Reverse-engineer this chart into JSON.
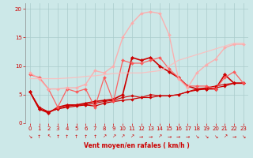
{
  "background_color": "#cce8e8",
  "grid_color": "#aacccc",
  "xlabel": "Vent moyen/en rafales ( km/h )",
  "xlabel_color": "#cc0000",
  "tick_color": "#cc0000",
  "ylim": [
    0,
    21
  ],
  "xlim": [
    -0.5,
    23.5
  ],
  "yticks": [
    0,
    5,
    10,
    15,
    20
  ],
  "xticks": [
    0,
    1,
    2,
    3,
    4,
    5,
    6,
    7,
    8,
    9,
    10,
    11,
    12,
    13,
    14,
    15,
    16,
    17,
    18,
    19,
    20,
    21,
    22,
    23
  ],
  "wind_arrows": [
    "↘",
    "↑",
    "↖",
    "↑",
    "↑",
    "↑",
    "↑",
    "↑",
    "↗",
    "↗",
    "↗",
    "↗",
    "→",
    "→",
    "↗",
    "→",
    "→",
    "→",
    "↘",
    "↘",
    "↘",
    "↗",
    "→",
    "↘"
  ],
  "lines": [
    {
      "x": [
        0,
        1,
        2,
        3,
        4,
        5,
        6,
        7,
        8,
        9,
        10,
        11,
        12,
        13,
        14,
        15,
        16,
        17,
        18,
        19,
        20,
        21,
        22,
        23
      ],
      "y": [
        5.5,
        2.5,
        2.0,
        2.5,
        2.8,
        3.0,
        3.2,
        3.0,
        3.5,
        3.8,
        4.0,
        4.2,
        4.5,
        4.5,
        4.8,
        4.8,
        5.0,
        5.5,
        5.8,
        6.0,
        6.2,
        6.5,
        7.0,
        7.0
      ],
      "color": "#cc0000",
      "lw": 0.9,
      "marker": "D",
      "markersize": 1.8,
      "alpha": 1.0
    },
    {
      "x": [
        0,
        1,
        2,
        3,
        4,
        5,
        6,
        7,
        8,
        9,
        10,
        11,
        12,
        13,
        14,
        15,
        16,
        17,
        18,
        19,
        20,
        21,
        22,
        23
      ],
      "y": [
        5.5,
        2.8,
        2.0,
        2.5,
        3.0,
        3.2,
        3.2,
        3.5,
        3.8,
        4.0,
        4.5,
        4.8,
        4.5,
        5.0,
        4.8,
        4.8,
        5.0,
        5.5,
        6.0,
        6.2,
        6.5,
        6.8,
        7.0,
        7.0
      ],
      "color": "#cc0000",
      "lw": 0.8,
      "marker": "D",
      "markersize": 1.8,
      "alpha": 1.0
    },
    {
      "x": [
        0,
        1,
        2,
        3,
        4,
        5,
        6,
        7,
        8,
        9,
        10,
        11,
        12,
        13,
        14,
        15,
        16,
        17,
        18,
        19,
        20,
        21,
        22,
        23
      ],
      "y": [
        5.5,
        2.5,
        1.8,
        2.8,
        3.2,
        3.2,
        3.5,
        3.8,
        4.0,
        4.2,
        5.0,
        11.5,
        11.0,
        11.5,
        10.0,
        9.0,
        8.0,
        6.5,
        6.0,
        6.0,
        6.0,
        8.5,
        7.0,
        7.0
      ],
      "color": "#cc0000",
      "lw": 1.2,
      "marker": "D",
      "markersize": 2.2,
      "alpha": 1.0
    },
    {
      "x": [
        0,
        1,
        2,
        3,
        4,
        5,
        6,
        7,
        8,
        9,
        10,
        11,
        12,
        13,
        14,
        15,
        16,
        17,
        18,
        19,
        20,
        21,
        22,
        23
      ],
      "y": [
        8.5,
        8.0,
        6.0,
        2.8,
        6.0,
        5.5,
        6.0,
        2.8,
        8.0,
        3.8,
        11.0,
        10.5,
        10.5,
        11.0,
        11.5,
        9.5,
        8.0,
        6.5,
        6.5,
        6.5,
        6.0,
        8.0,
        9.0,
        7.0
      ],
      "color": "#ff5555",
      "lw": 0.9,
      "marker": "D",
      "markersize": 2.0,
      "alpha": 0.9
    },
    {
      "x": [
        0,
        1,
        2,
        3,
        4,
        5,
        6,
        7,
        8,
        9,
        10,
        11,
        12,
        13,
        14,
        15,
        16,
        17,
        18,
        19,
        20,
        21,
        22,
        23
      ],
      "y": [
        8.8,
        7.8,
        6.0,
        6.0,
        6.2,
        6.2,
        6.8,
        9.2,
        8.8,
        10.0,
        15.0,
        17.5,
        19.2,
        19.5,
        19.2,
        15.5,
        7.8,
        6.2,
        8.8,
        10.2,
        11.2,
        13.2,
        13.8,
        13.8
      ],
      "color": "#ffaaaa",
      "lw": 1.0,
      "marker": "D",
      "markersize": 2.0,
      "alpha": 0.9
    },
    {
      "x": [
        0,
        1,
        2,
        3,
        4,
        5,
        6,
        7,
        8,
        9,
        10,
        11,
        12,
        13,
        14,
        15,
        16,
        17,
        18,
        19,
        20,
        21,
        22,
        23
      ],
      "y": [
        7.8,
        7.8,
        7.8,
        7.8,
        7.9,
        8.0,
        8.2,
        8.3,
        8.5,
        8.7,
        8.8,
        8.8,
        8.8,
        9.0,
        9.2,
        10.0,
        11.0,
        11.5,
        12.0,
        12.5,
        13.0,
        13.5,
        14.0,
        14.0
      ],
      "color": "#ffbbbb",
      "lw": 0.9,
      "marker": null,
      "markersize": 0,
      "alpha": 0.85
    }
  ]
}
